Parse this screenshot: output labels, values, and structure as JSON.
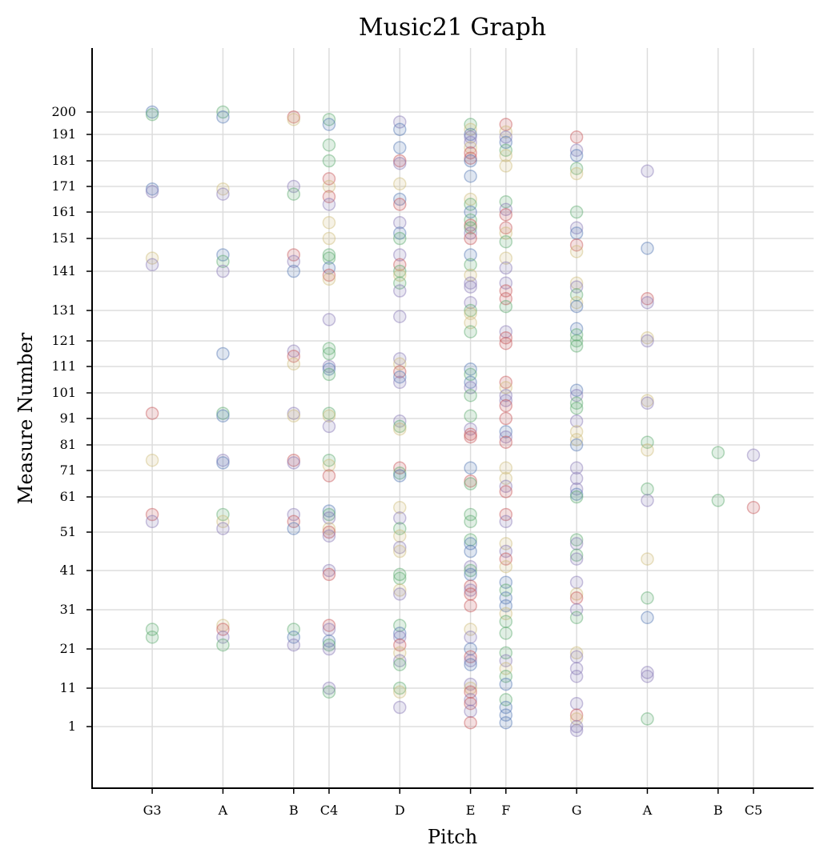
{
  "chart_data": {
    "type": "scatter",
    "title": "Music21 Graph",
    "xlabel": "Pitch",
    "ylabel": "Measure Number",
    "x_ticks": [
      {
        "pitch": 55,
        "label": "G3"
      },
      {
        "pitch": 57,
        "label": "A"
      },
      {
        "pitch": 59,
        "label": "B"
      },
      {
        "pitch": 60,
        "label": "C4"
      },
      {
        "pitch": 62,
        "label": "D"
      },
      {
        "pitch": 64,
        "label": "E"
      },
      {
        "pitch": 65,
        "label": "F"
      },
      {
        "pitch": 67,
        "label": "G"
      },
      {
        "pitch": 69,
        "label": "A"
      },
      {
        "pitch": 71,
        "label": "B"
      },
      {
        "pitch": 72,
        "label": "C5"
      }
    ],
    "y_ticks": [
      1,
      11,
      21,
      31,
      41,
      51,
      61,
      71,
      81,
      91,
      101,
      111,
      121,
      131,
      141,
      151,
      161,
      171,
      181,
      191,
      200
    ],
    "xlim": [
      53.3,
      73.7
    ],
    "ylim": [
      -23.9,
      259
    ],
    "y_scale": "piecewise linear between tick labels",
    "grid": true,
    "marker_alpha": 0.18,
    "colors": [
      "#4c72b0",
      "#55a868",
      "#c44e52",
      "#8172b2",
      "#ccb974",
      "#64b5cd",
      "#1f1f6e",
      "#8c6d31"
    ],
    "points": [
      [
        55,
        200,
        0
      ],
      [
        55,
        199,
        1
      ],
      [
        55,
        170,
        0
      ],
      [
        55,
        169,
        3
      ],
      [
        55,
        145,
        4
      ],
      [
        55,
        143,
        3
      ],
      [
        55,
        93,
        2
      ],
      [
        55,
        75,
        4
      ],
      [
        55,
        56,
        2
      ],
      [
        55,
        54,
        3
      ],
      [
        55,
        26,
        1
      ],
      [
        55,
        24,
        1
      ],
      [
        57,
        200,
        1
      ],
      [
        57,
        198,
        0
      ],
      [
        57,
        170,
        4
      ],
      [
        57,
        168,
        3
      ],
      [
        57,
        146,
        0
      ],
      [
        57,
        144,
        1
      ],
      [
        57,
        141,
        3
      ],
      [
        57,
        116,
        0
      ],
      [
        57,
        93,
        1
      ],
      [
        57,
        92,
        0
      ],
      [
        57,
        75,
        3
      ],
      [
        57,
        74,
        0
      ],
      [
        57,
        56,
        1
      ],
      [
        57,
        54,
        4
      ],
      [
        57,
        52,
        3
      ],
      [
        57,
        27,
        4
      ],
      [
        57,
        26,
        2
      ],
      [
        57,
        24,
        3
      ],
      [
        57,
        22,
        1
      ],
      [
        59,
        198,
        2
      ],
      [
        59,
        197,
        4
      ],
      [
        59,
        171,
        3
      ],
      [
        59,
        168,
        1
      ],
      [
        59,
        146,
        2
      ],
      [
        59,
        144,
        3
      ],
      [
        59,
        141,
        0
      ],
      [
        59,
        117,
        3
      ],
      [
        59,
        115,
        2
      ],
      [
        59,
        112,
        4
      ],
      [
        59,
        93,
        3
      ],
      [
        59,
        92,
        4
      ],
      [
        59,
        75,
        2
      ],
      [
        59,
        74,
        3
      ],
      [
        59,
        56,
        3
      ],
      [
        59,
        54,
        2
      ],
      [
        59,
        52,
        0
      ],
      [
        59,
        26,
        1
      ],
      [
        59,
        24,
        0
      ],
      [
        59,
        22,
        3
      ],
      [
        60,
        197,
        1
      ],
      [
        60,
        195,
        0
      ],
      [
        60,
        187,
        1
      ],
      [
        60,
        181,
        1
      ],
      [
        60,
        174,
        2
      ],
      [
        60,
        171,
        4
      ],
      [
        60,
        167,
        2
      ],
      [
        60,
        164,
        3
      ],
      [
        60,
        157,
        4
      ],
      [
        60,
        151,
        4
      ],
      [
        60,
        146,
        1
      ],
      [
        60,
        145,
        1
      ],
      [
        60,
        142,
        0
      ],
      [
        60,
        140,
        2
      ],
      [
        60,
        139,
        4
      ],
      [
        60,
        128,
        3
      ],
      [
        60,
        118,
        1
      ],
      [
        60,
        116,
        1
      ],
      [
        60,
        111,
        3
      ],
      [
        60,
        110,
        0
      ],
      [
        60,
        108,
        1
      ],
      [
        60,
        93,
        1
      ],
      [
        60,
        92,
        4
      ],
      [
        60,
        88,
        3
      ],
      [
        60,
        75,
        1
      ],
      [
        60,
        73,
        4
      ],
      [
        60,
        69,
        2
      ],
      [
        60,
        57,
        0
      ],
      [
        60,
        56,
        1
      ],
      [
        60,
        55,
        3
      ],
      [
        60,
        52,
        4
      ],
      [
        60,
        51,
        2
      ],
      [
        60,
        50,
        3
      ],
      [
        60,
        41,
        3
      ],
      [
        60,
        40,
        2
      ],
      [
        60,
        27,
        2
      ],
      [
        60,
        26,
        3
      ],
      [
        60,
        23,
        0
      ],
      [
        60,
        22,
        1
      ],
      [
        60,
        21,
        3
      ],
      [
        60,
        11,
        3
      ],
      [
        60,
        10,
        1
      ],
      [
        62,
        196,
        3
      ],
      [
        62,
        193,
        0
      ],
      [
        62,
        186,
        0
      ],
      [
        62,
        181,
        2
      ],
      [
        62,
        180,
        3
      ],
      [
        62,
        172,
        4
      ],
      [
        62,
        166,
        0
      ],
      [
        62,
        164,
        2
      ],
      [
        62,
        157,
        3
      ],
      [
        62,
        153,
        0
      ],
      [
        62,
        151,
        1
      ],
      [
        62,
        146,
        3
      ],
      [
        62,
        143,
        2
      ],
      [
        62,
        141,
        1
      ],
      [
        62,
        140,
        4
      ],
      [
        62,
        138,
        1
      ],
      [
        62,
        136,
        3
      ],
      [
        62,
        129,
        3
      ],
      [
        62,
        114,
        3
      ],
      [
        62,
        112,
        4
      ],
      [
        62,
        109,
        2
      ],
      [
        62,
        107,
        0
      ],
      [
        62,
        105,
        3
      ],
      [
        62,
        90,
        3
      ],
      [
        62,
        88,
        1
      ],
      [
        62,
        87,
        4
      ],
      [
        62,
        72,
        2
      ],
      [
        62,
        70,
        1
      ],
      [
        62,
        69,
        0
      ],
      [
        62,
        58,
        4
      ],
      [
        62,
        55,
        3
      ],
      [
        62,
        52,
        1
      ],
      [
        62,
        50,
        4
      ],
      [
        62,
        47,
        3
      ],
      [
        62,
        46,
        4
      ],
      [
        62,
        40,
        1
      ],
      [
        62,
        39,
        1
      ],
      [
        62,
        36,
        4
      ],
      [
        62,
        35,
        3
      ],
      [
        62,
        27,
        1
      ],
      [
        62,
        25,
        0
      ],
      [
        62,
        24,
        3
      ],
      [
        62,
        22,
        2
      ],
      [
        62,
        20,
        4
      ],
      [
        62,
        18,
        3
      ],
      [
        62,
        17,
        1
      ],
      [
        62,
        11,
        1
      ],
      [
        62,
        10,
        4
      ],
      [
        62,
        6,
        3
      ],
      [
        64,
        195,
        1
      ],
      [
        64,
        193,
        4
      ],
      [
        64,
        191,
        0
      ],
      [
        64,
        190,
        3
      ],
      [
        64,
        188,
        3
      ],
      [
        64,
        186,
        4
      ],
      [
        64,
        184,
        2
      ],
      [
        64,
        182,
        2
      ],
      [
        64,
        181,
        0
      ],
      [
        64,
        175,
        0
      ],
      [
        64,
        166,
        4
      ],
      [
        64,
        164,
        1
      ],
      [
        64,
        161,
        0
      ],
      [
        64,
        158,
        1
      ],
      [
        64,
        156,
        2
      ],
      [
        64,
        155,
        1
      ],
      [
        64,
        153,
        3
      ],
      [
        64,
        151,
        2
      ],
      [
        64,
        146,
        0
      ],
      [
        64,
        143,
        1
      ],
      [
        64,
        140,
        4
      ],
      [
        64,
        138,
        3
      ],
      [
        64,
        137,
        3
      ],
      [
        64,
        133,
        3
      ],
      [
        64,
        131,
        1
      ],
      [
        64,
        130,
        4
      ],
      [
        64,
        127,
        4
      ],
      [
        64,
        124,
        1
      ],
      [
        64,
        110,
        0
      ],
      [
        64,
        108,
        1
      ],
      [
        64,
        105,
        0
      ],
      [
        64,
        103,
        3
      ],
      [
        64,
        100,
        1
      ],
      [
        64,
        92,
        1
      ],
      [
        64,
        87,
        3
      ],
      [
        64,
        85,
        2
      ],
      [
        64,
        84,
        2
      ],
      [
        64,
        72,
        0
      ],
      [
        64,
        67,
        2
      ],
      [
        64,
        66,
        1
      ],
      [
        64,
        56,
        1
      ],
      [
        64,
        54,
        1
      ],
      [
        64,
        49,
        1
      ],
      [
        64,
        48,
        0
      ],
      [
        64,
        46,
        0
      ],
      [
        64,
        42,
        3
      ],
      [
        64,
        41,
        1
      ],
      [
        64,
        40,
        0
      ],
      [
        64,
        37,
        2
      ],
      [
        64,
        36,
        3
      ],
      [
        64,
        35,
        2
      ],
      [
        64,
        32,
        2
      ],
      [
        64,
        26,
        4
      ],
      [
        64,
        24,
        3
      ],
      [
        64,
        21,
        0
      ],
      [
        64,
        19,
        2
      ],
      [
        64,
        18,
        3
      ],
      [
        64,
        17,
        0
      ],
      [
        64,
        12,
        3
      ],
      [
        64,
        11,
        4
      ],
      [
        64,
        10,
        2
      ],
      [
        64,
        8,
        3
      ],
      [
        64,
        7,
        2
      ],
      [
        64,
        5,
        3
      ],
      [
        64,
        2,
        2
      ],
      [
        65,
        195,
        2
      ],
      [
        65,
        192,
        4
      ],
      [
        65,
        190,
        3
      ],
      [
        65,
        188,
        0
      ],
      [
        65,
        185,
        1
      ],
      [
        65,
        183,
        4
      ],
      [
        65,
        179,
        4
      ],
      [
        65,
        165,
        1
      ],
      [
        65,
        162,
        3
      ],
      [
        65,
        160,
        2
      ],
      [
        65,
        155,
        2
      ],
      [
        65,
        153,
        4
      ],
      [
        65,
        150,
        1
      ],
      [
        65,
        145,
        4
      ],
      [
        65,
        142,
        3
      ],
      [
        65,
        138,
        3
      ],
      [
        65,
        136,
        2
      ],
      [
        65,
        134,
        2
      ],
      [
        65,
        132,
        1
      ],
      [
        65,
        124,
        3
      ],
      [
        65,
        122,
        2
      ],
      [
        65,
        120,
        2
      ],
      [
        65,
        105,
        2
      ],
      [
        65,
        103,
        4
      ],
      [
        65,
        100,
        3
      ],
      [
        65,
        98,
        3
      ],
      [
        65,
        96,
        2
      ],
      [
        65,
        91,
        2
      ],
      [
        65,
        86,
        0
      ],
      [
        65,
        84,
        3
      ],
      [
        65,
        82,
        2
      ],
      [
        65,
        72,
        4
      ],
      [
        65,
        68,
        4
      ],
      [
        65,
        65,
        3
      ],
      [
        65,
        63,
        2
      ],
      [
        65,
        56,
        2
      ],
      [
        65,
        54,
        3
      ],
      [
        65,
        48,
        4
      ],
      [
        65,
        46,
        3
      ],
      [
        65,
        44,
        2
      ],
      [
        65,
        42,
        4
      ],
      [
        65,
        38,
        0
      ],
      [
        65,
        36,
        1
      ],
      [
        65,
        34,
        0
      ],
      [
        65,
        32,
        0
      ],
      [
        65,
        30,
        4
      ],
      [
        65,
        28,
        1
      ],
      [
        65,
        25,
        1
      ],
      [
        65,
        20,
        1
      ],
      [
        65,
        18,
        3
      ],
      [
        65,
        16,
        4
      ],
      [
        65,
        14,
        1
      ],
      [
        65,
        12,
        0
      ],
      [
        65,
        8,
        1
      ],
      [
        65,
        6,
        0
      ],
      [
        65,
        4,
        0
      ],
      [
        65,
        2,
        0
      ],
      [
        67,
        190,
        2
      ],
      [
        67,
        185,
        3
      ],
      [
        67,
        183,
        0
      ],
      [
        67,
        178,
        1
      ],
      [
        67,
        176,
        4
      ],
      [
        67,
        161,
        1
      ],
      [
        67,
        155,
        3
      ],
      [
        67,
        153,
        0
      ],
      [
        67,
        149,
        2
      ],
      [
        67,
        147,
        4
      ],
      [
        67,
        138,
        4
      ],
      [
        67,
        137,
        3
      ],
      [
        67,
        135,
        1
      ],
      [
        67,
        133,
        4
      ],
      [
        67,
        132,
        0
      ],
      [
        67,
        125,
        0
      ],
      [
        67,
        123,
        1
      ],
      [
        67,
        121,
        1
      ],
      [
        67,
        119,
        1
      ],
      [
        67,
        102,
        0
      ],
      [
        67,
        100,
        3
      ],
      [
        67,
        97,
        1
      ],
      [
        67,
        95,
        1
      ],
      [
        67,
        90,
        3
      ],
      [
        67,
        86,
        4
      ],
      [
        67,
        83,
        4
      ],
      [
        67,
        81,
        0
      ],
      [
        67,
        72,
        3
      ],
      [
        67,
        68,
        3
      ],
      [
        67,
        64,
        3
      ],
      [
        67,
        62,
        0
      ],
      [
        67,
        61,
        1
      ],
      [
        67,
        49,
        1
      ],
      [
        67,
        48,
        3
      ],
      [
        67,
        45,
        1
      ],
      [
        67,
        44,
        3
      ],
      [
        67,
        38,
        3
      ],
      [
        67,
        35,
        4
      ],
      [
        67,
        34,
        2
      ],
      [
        67,
        31,
        3
      ],
      [
        67,
        29,
        1
      ],
      [
        67,
        20,
        4
      ],
      [
        67,
        19,
        3
      ],
      [
        67,
        16,
        3
      ],
      [
        67,
        14,
        3
      ],
      [
        67,
        7,
        3
      ],
      [
        67,
        4,
        2
      ],
      [
        67,
        3,
        4
      ],
      [
        67,
        1,
        3
      ],
      [
        67,
        0,
        3
      ],
      [
        69,
        177,
        3
      ],
      [
        69,
        148,
        0
      ],
      [
        69,
        134,
        2
      ],
      [
        69,
        133,
        3
      ],
      [
        69,
        122,
        4
      ],
      [
        69,
        121,
        3
      ],
      [
        69,
        98,
        4
      ],
      [
        69,
        97,
        3
      ],
      [
        69,
        82,
        1
      ],
      [
        69,
        79,
        4
      ],
      [
        69,
        64,
        1
      ],
      [
        69,
        60,
        3
      ],
      [
        69,
        44,
        4
      ],
      [
        69,
        34,
        1
      ],
      [
        69,
        29,
        0
      ],
      [
        69,
        15,
        3
      ],
      [
        69,
        14,
        3
      ],
      [
        69,
        3,
        1
      ],
      [
        71,
        78,
        1
      ],
      [
        71,
        60,
        1
      ],
      [
        72,
        77,
        3
      ],
      [
        72,
        58,
        2
      ]
    ]
  }
}
